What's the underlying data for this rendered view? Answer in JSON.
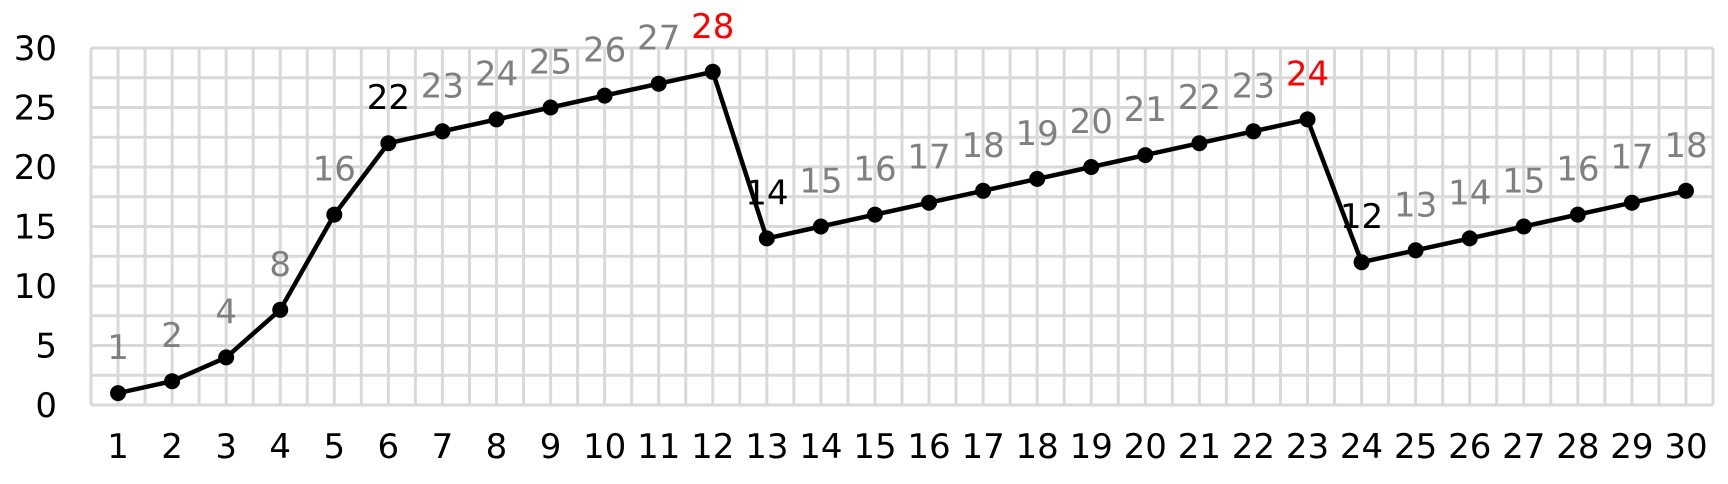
{
  "chart_data": {
    "type": "line",
    "x": [
      1,
      2,
      3,
      4,
      5,
      6,
      7,
      8,
      9,
      10,
      11,
      12,
      13,
      14,
      15,
      16,
      17,
      18,
      19,
      20,
      21,
      22,
      23,
      24,
      25,
      26,
      27,
      28,
      29,
      30
    ],
    "series": [
      {
        "values": [
          1,
          2,
          4,
          8,
          16,
          22,
          23,
          24,
          25,
          26,
          27,
          28,
          14,
          15,
          16,
          17,
          18,
          19,
          20,
          21,
          22,
          23,
          24,
          12,
          13,
          14,
          15,
          16,
          17,
          18
        ]
      }
    ],
    "data_labels": [
      "1",
      "2",
      "4",
      "8",
      "16",
      "22",
      "23",
      "24",
      "25",
      "26",
      "27",
      "28",
      "14",
      "15",
      "16",
      "17",
      "18",
      "19",
      "20",
      "21",
      "22",
      "23",
      "24",
      "12",
      "13",
      "14",
      "15",
      "16",
      "17",
      "18"
    ],
    "label_colors": [
      "#808080",
      "#808080",
      "#808080",
      "#808080",
      "#808080",
      "#000000",
      "#808080",
      "#808080",
      "#808080",
      "#808080",
      "#808080",
      "#ff0000",
      "#000000",
      "#808080",
      "#808080",
      "#808080",
      "#808080",
      "#808080",
      "#808080",
      "#808080",
      "#808080",
      "#808080",
      "#ff0000",
      "#000000",
      "#808080",
      "#808080",
      "#808080",
      "#808080",
      "#808080",
      "#808080"
    ],
    "y_ticks": [
      "0",
      "5",
      "10",
      "15",
      "20",
      "25",
      "30"
    ],
    "x_ticks": [
      "1",
      "2",
      "3",
      "4",
      "5",
      "6",
      "7",
      "8",
      "9",
      "10",
      "11",
      "12",
      "13",
      "14",
      "15",
      "16",
      "17",
      "18",
      "19",
      "20",
      "21",
      "22",
      "23",
      "24",
      "25",
      "26",
      "27",
      "28",
      "29",
      "30"
    ],
    "ylim": [
      0,
      30
    ],
    "xlim": [
      0.5,
      30.5
    ],
    "y_step": 5,
    "grid": true,
    "colors": {
      "line": "#000000",
      "grid": "#d9d9d9",
      "highlight": "#ff0000",
      "normal_label": "#808080",
      "dark_label": "#000000"
    }
  }
}
